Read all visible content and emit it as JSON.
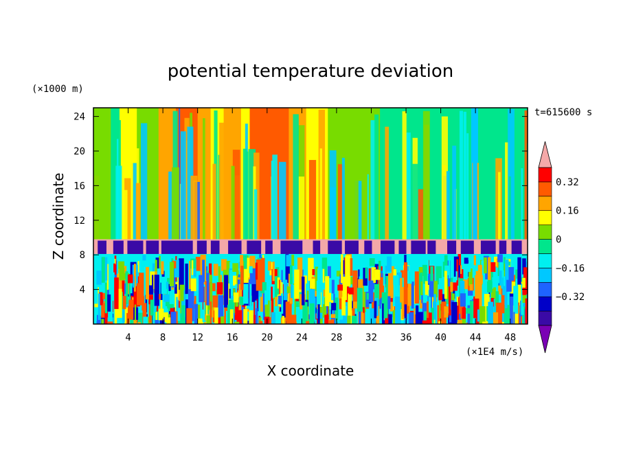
{
  "chart_data": {
    "type": "heatmap",
    "title": "potential temperature deviation",
    "xlabel": "X coordinate",
    "ylabel": "Z coordinate",
    "x_unit": "(×1E4 m/s)",
    "y_unit": "(×1000 m)",
    "time_label": "t=615600 s",
    "xlim": [
      0,
      50
    ],
    "ylim": [
      0,
      25
    ],
    "x_ticks": [
      "4",
      "8",
      "12",
      "16",
      "20",
      "24",
      "28",
      "32",
      "36",
      "40",
      "44",
      "48"
    ],
    "y_ticks": [
      "4",
      "8",
      "12",
      "16",
      "20",
      "24"
    ],
    "x_tick_values": [
      4,
      8,
      12,
      16,
      20,
      24,
      28,
      32,
      36,
      40,
      44,
      48
    ],
    "y_tick_values": [
      4,
      8,
      12,
      16,
      20,
      24
    ],
    "colorbar": {
      "levels": [
        -0.48,
        -0.4,
        -0.32,
        -0.24,
        -0.16,
        -0.08,
        0,
        0.08,
        0.16,
        0.24,
        0.32,
        0.4
      ],
      "tick_labels": [
        "0.32",
        "0.16",
        "0",
        "−0.16",
        "−0.32"
      ],
      "tick_values": [
        0.32,
        0.16,
        0,
        -0.16,
        -0.32
      ],
      "colors": [
        "#7a00b4",
        "#3a0aa6",
        "#0000c8",
        "#1e64ff",
        "#00c8ff",
        "#00f0f0",
        "#00e68c",
        "#78dc00",
        "#ffff00",
        "#ffa500",
        "#ff5a00",
        "#ff0000",
        "#f4a8a8"
      ],
      "low_color": "#7a00b4",
      "high_color": "#f4a8a8"
    },
    "upper_columns": {
      "x_breaks": [
        0,
        2,
        3,
        5,
        7.5,
        9.5,
        12,
        13.5,
        15,
        17,
        18,
        21,
        22.5,
        24.5,
        27,
        29,
        31,
        33,
        35,
        37,
        39,
        41,
        43.5,
        44.3,
        46,
        48,
        50
      ],
      "values": [
        0.0,
        -0.08,
        0.08,
        0.0,
        0.16,
        0.24,
        0.16,
        0.08,
        0.16,
        0.08,
        0.24,
        0.24,
        0.16,
        0.08,
        0.0,
        0.0,
        0.0,
        -0.08,
        -0.08,
        -0.08,
        -0.08,
        -0.08,
        -0.24,
        -0.08,
        -0.08,
        -0.08
      ]
    },
    "band": {
      "z_range": [
        8.1,
        9.8
      ],
      "value": 0.45,
      "sub_band_value": -0.45
    },
    "lower_layer": {
      "z_range": [
        0,
        8.1
      ],
      "description_values": [
        -0.4,
        0.4
      ]
    }
  }
}
